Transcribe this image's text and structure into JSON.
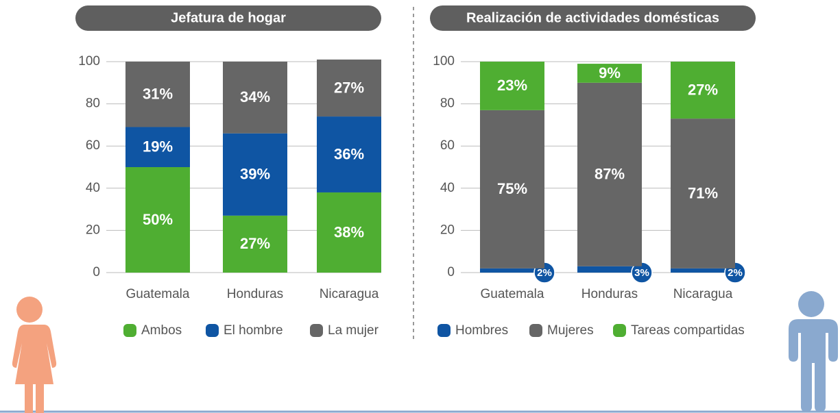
{
  "chart_data": [
    {
      "type": "bar",
      "stacked": true,
      "title": "Jefatura de hogar",
      "categories": [
        "Guatemala",
        "Honduras",
        "Nicaragua"
      ],
      "series": [
        {
          "name": "Ambos",
          "color": "#4fae32",
          "values": [
            50,
            27,
            38
          ],
          "value_labels": [
            "50%",
            "27%",
            "38%"
          ]
        },
        {
          "name": "El hombre",
          "color": "#0f55a3",
          "values": [
            19,
            39,
            36
          ],
          "value_labels": [
            "19%",
            "39%",
            "36%"
          ]
        },
        {
          "name": "La mujer",
          "color": "#666666",
          "values": [
            31,
            34,
            27
          ],
          "value_labels": [
            "31%",
            "34%",
            "27%"
          ]
        }
      ],
      "ylim": [
        0,
        100
      ],
      "yticks": [
        0,
        20,
        40,
        60,
        80,
        100
      ],
      "grid": true
    },
    {
      "type": "bar",
      "stacked": true,
      "title": "Realización de actividades domésticas",
      "categories": [
        "Guatemala",
        "Honduras",
        "Nicaragua"
      ],
      "series": [
        {
          "name": "Hombres",
          "color": "#0f55a3",
          "values": [
            2,
            3,
            2
          ],
          "value_labels": [
            "2%",
            "3%",
            "2%"
          ]
        },
        {
          "name": "Mujeres",
          "color": "#666666",
          "values": [
            75,
            87,
            71
          ],
          "value_labels": [
            "75%",
            "87%",
            "71%"
          ]
        },
        {
          "name": "Tareas compartidas",
          "color": "#4fae32",
          "values": [
            23,
            9,
            27
          ],
          "value_labels": [
            "23%",
            "9%",
            "27%"
          ]
        }
      ],
      "ylim": [
        0,
        100
      ],
      "yticks": [
        0,
        20,
        40,
        60,
        80,
        100
      ],
      "grid": true
    }
  ]
}
